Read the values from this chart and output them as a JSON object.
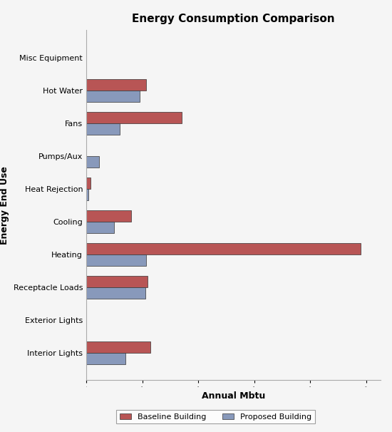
{
  "title": "Energy Consumption Comparison",
  "xlabel": "Annual Mbtu",
  "ylabel": "Energy End Use",
  "categories": [
    "Interior Lights",
    "Exterior Lights",
    "Receptacle Loads",
    "Heating",
    "Cooling",
    "Heat Rejection",
    "Pumps/Aux",
    "Fans",
    "Hot Water",
    "Misc Equipment"
  ],
  "baseline": [
    230,
    1,
    220,
    980,
    160,
    14,
    1,
    340,
    215,
    1
  ],
  "proposed": [
    140,
    1,
    210,
    215,
    100,
    8,
    45,
    120,
    190,
    1
  ],
  "baseline_color": "#b85555",
  "proposed_color": "#8899bb",
  "background_color": "#f5f5f5",
  "bar_height": 0.35,
  "legend_labels": [
    "Baseline Building",
    "Proposed Building"
  ],
  "title_fontsize": 11,
  "label_fontsize": 9,
  "tick_fontsize": 8,
  "xlim": [
    0,
    1050
  ]
}
